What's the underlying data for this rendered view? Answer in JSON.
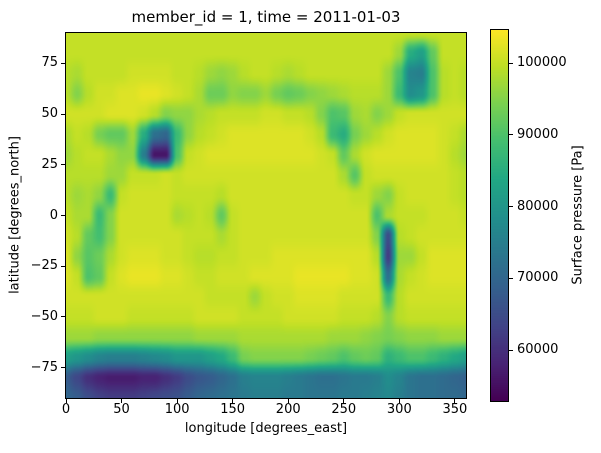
{
  "figure": {
    "title": "member_id = 1, time = 2011-01-03",
    "xlabel": "longitude [degrees_east]",
    "ylabel": "latitude [degrees_north]",
    "colorbar_label": "Surface pressure [Pa]"
  },
  "colors": {
    "background": "#ffffff",
    "text": "#000000",
    "spine": "#000000",
    "viridis_stops": [
      [
        0.0,
        "#440154"
      ],
      [
        0.1,
        "#482475"
      ],
      [
        0.2,
        "#414487"
      ],
      [
        0.3,
        "#355f8d"
      ],
      [
        0.4,
        "#2a788e"
      ],
      [
        0.5,
        "#21918c"
      ],
      [
        0.6,
        "#22a884"
      ],
      [
        0.7,
        "#44bf70"
      ],
      [
        0.8,
        "#7ad151"
      ],
      [
        0.9,
        "#bddf26"
      ],
      [
        1.0,
        "#fde725"
      ]
    ]
  },
  "chart_data": {
    "type": "heatmap",
    "title": "member_id = 1, time = 2011-01-03",
    "xlabel": "longitude [degrees_east]",
    "ylabel": "latitude [degrees_north]",
    "xlim": [
      0,
      360
    ],
    "ylim": [
      -90,
      90
    ],
    "grid_lines": false,
    "colormap": "viridis",
    "xticks": [
      {
        "value": 0,
        "label": "0"
      },
      {
        "value": 50,
        "label": "50"
      },
      {
        "value": 100,
        "label": "100"
      },
      {
        "value": 150,
        "label": "150"
      },
      {
        "value": 200,
        "label": "200"
      },
      {
        "value": 250,
        "label": "250"
      },
      {
        "value": 300,
        "label": "300"
      },
      {
        "value": 350,
        "label": "350"
      }
    ],
    "yticks": [
      {
        "value": 75,
        "label": "75"
      },
      {
        "value": 50,
        "label": "50"
      },
      {
        "value": 25,
        "label": "25"
      },
      {
        "value": 0,
        "label": "0"
      },
      {
        "value": -25,
        "label": "−25"
      },
      {
        "value": -50,
        "label": "−50"
      },
      {
        "value": -75,
        "label": "−75"
      }
    ],
    "colorbar": {
      "label": "Surface pressure [Pa]",
      "colormap": "viridis",
      "vmin": 52900,
      "vmax": 104600,
      "ticks": [
        {
          "value": 100000,
          "label": "100000"
        },
        {
          "value": 90000,
          "label": "90000"
        },
        {
          "value": 80000,
          "label": "80000"
        },
        {
          "value": 70000,
          "label": "70000"
        },
        {
          "value": 60000,
          "label": "60000"
        }
      ]
    },
    "grid": {
      "description": "Surface pressure field sampled on a 10-degree grid, units kPa; rows run lat 90 to -90, cols run lon 0 to 360",
      "units": "kPa",
      "lon_start": 0,
      "lon_step": 10,
      "lat_start": 90,
      "lat_step": -10,
      "values": [
        [
          100,
          100,
          100,
          100,
          100,
          100,
          100,
          100,
          100,
          100,
          100,
          100,
          100,
          100,
          100,
          100,
          100,
          100,
          100,
          100,
          100,
          100,
          100,
          100,
          100,
          100,
          100,
          100,
          100,
          100,
          100,
          100,
          100,
          100,
          100,
          100,
          100
        ],
        [
          100,
          100,
          100,
          100,
          100,
          100,
          100,
          100,
          100,
          100,
          100,
          100,
          100,
          100,
          100,
          100,
          100,
          100,
          100,
          100,
          100,
          100,
          100,
          100,
          100,
          100,
          100,
          100,
          100,
          100,
          97,
          85,
          82,
          92,
          100,
          100,
          100
        ],
        [
          99,
          98,
          100,
          100,
          100,
          100,
          101,
          101,
          101,
          101,
          100,
          100,
          99,
          97,
          96,
          97,
          99,
          100,
          100,
          99,
          98,
          99,
          100,
          100,
          100,
          100,
          100,
          100,
          100,
          97,
          90,
          76,
          75,
          90,
          99,
          100,
          99
        ],
        [
          99,
          95,
          99,
          101,
          101,
          102,
          102,
          103,
          103,
          102,
          101,
          100,
          98,
          93,
          93,
          96,
          95,
          95,
          97,
          94,
          92,
          93,
          95,
          96,
          97,
          98,
          99,
          99,
          99,
          97,
          88,
          78,
          80,
          90,
          99,
          100,
          99
        ],
        [
          101,
          101,
          101,
          101,
          102,
          102,
          102,
          101,
          99,
          95,
          96,
          96,
          98,
          99,
          100,
          100,
          100,
          100,
          101,
          101,
          100,
          100,
          99,
          95,
          90,
          91,
          97,
          98,
          95,
          97,
          100,
          101,
          101,
          101,
          101,
          101,
          101
        ],
        [
          98,
          100,
          99,
          94,
          92,
          92,
          97,
          85,
          72,
          70,
          88,
          96,
          99,
          100,
          101,
          102,
          102,
          102,
          102,
          102,
          102,
          102,
          101,
          99,
          88,
          85,
          94,
          97,
          99,
          101,
          102,
          102,
          102,
          102,
          101,
          100,
          98
        ],
        [
          97,
          99,
          100,
          100,
          98,
          96,
          96,
          75,
          56,
          56,
          90,
          100,
          101,
          102,
          102,
          102,
          102,
          102,
          102,
          102,
          102,
          102,
          102,
          101,
          100,
          92,
          98,
          101,
          102,
          102,
          102,
          102,
          102,
          102,
          101,
          99,
          97
        ],
        [
          99,
          99,
          99,
          99,
          97,
          97,
          100,
          100,
          100,
          101,
          100,
          101,
          101,
          101,
          101,
          101,
          101,
          101,
          101,
          101,
          101,
          101,
          101,
          101,
          101,
          98,
          91,
          100,
          101,
          101,
          101,
          101,
          101,
          101,
          101,
          100,
          99
        ],
        [
          99,
          97,
          98,
          96,
          88,
          100,
          101,
          101,
          101,
          101,
          100,
          100,
          100,
          100,
          99,
          101,
          101,
          101,
          101,
          101,
          101,
          101,
          101,
          101,
          101,
          101,
          100,
          100,
          97,
          95,
          100,
          101,
          101,
          101,
          101,
          100,
          99
        ],
        [
          100,
          98,
          98,
          88,
          95,
          101,
          101,
          101,
          101,
          101,
          98,
          99,
          100,
          99,
          92,
          100,
          101,
          101,
          101,
          101,
          101,
          101,
          101,
          101,
          101,
          101,
          101,
          101,
          90,
          98,
          100,
          100,
          100,
          101,
          101,
          101,
          100
        ],
        [
          101,
          99,
          92,
          89,
          95,
          101,
          101,
          101,
          101,
          101,
          101,
          100,
          100,
          100,
          98,
          100,
          101,
          101,
          101,
          101,
          101,
          101,
          101,
          101,
          101,
          101,
          101,
          101,
          95,
          65,
          99,
          100,
          101,
          101,
          101,
          101,
          101
        ],
        [
          102,
          96,
          91,
          93,
          98,
          101,
          102,
          102,
          102,
          101,
          101,
          100,
          99,
          99,
          100,
          100,
          101,
          101,
          101,
          102,
          102,
          102,
          102,
          102,
          102,
          102,
          102,
          102,
          99,
          62,
          97,
          97,
          100,
          102,
          102,
          102,
          102
        ],
        [
          102,
          100,
          90,
          92,
          100,
          102,
          103,
          103,
          103,
          102,
          102,
          101,
          100,
          100,
          101,
          101,
          101,
          102,
          102,
          102,
          102,
          103,
          103,
          103,
          103,
          103,
          102,
          102,
          101,
          72,
          98,
          100,
          101,
          102,
          102,
          102,
          102
        ],
        [
          101,
          101,
          101,
          101,
          101,
          101,
          101,
          101,
          101,
          101,
          101,
          101,
          101,
          100,
          100,
          100,
          100,
          97,
          100,
          101,
          101,
          102,
          102,
          102,
          102,
          101,
          101,
          101,
          101,
          88,
          99,
          101,
          101,
          101,
          101,
          101,
          101
        ],
        [
          100,
          100,
          100,
          101,
          101,
          101,
          100,
          100,
          100,
          100,
          100,
          100,
          101,
          101,
          101,
          101,
          100,
          100,
          100,
          100,
          101,
          101,
          101,
          101,
          101,
          100,
          100,
          100,
          99,
          95,
          99,
          100,
          100,
          100,
          100,
          100,
          100
        ],
        [
          97,
          97,
          97,
          96,
          96,
          96,
          96,
          96,
          96,
          96,
          96,
          96,
          97,
          97,
          97,
          97,
          98,
          98,
          98,
          98,
          98,
          98,
          98,
          98,
          97,
          97,
          97,
          96,
          95,
          94,
          95,
          96,
          96,
          96,
          97,
          97,
          97
        ],
        [
          82,
          80,
          78,
          76,
          75,
          75,
          75,
          76,
          77,
          78,
          80,
          80,
          80,
          82,
          84,
          88,
          94,
          95,
          95,
          95,
          95,
          95,
          94,
          93,
          92,
          90,
          92,
          93,
          92,
          86,
          88,
          90,
          90,
          88,
          86,
          84,
          82
        ],
        [
          68,
          64,
          60,
          58,
          57,
          57,
          57,
          58,
          58,
          60,
          62,
          65,
          67,
          68,
          70,
          72,
          75,
          76,
          76,
          76,
          75,
          74,
          73,
          72,
          72,
          73,
          74,
          74,
          75,
          78,
          76,
          73,
          72,
          72,
          71,
          70,
          69
        ],
        [
          70,
          68,
          65,
          63,
          62,
          62,
          62,
          63,
          64,
          65,
          66,
          68,
          70,
          71,
          72,
          73,
          74,
          75,
          75,
          75,
          74,
          74,
          73,
          73,
          73,
          74,
          74,
          75,
          76,
          77,
          75,
          73,
          72,
          72,
          71,
          71,
          70
        ]
      ]
    }
  }
}
